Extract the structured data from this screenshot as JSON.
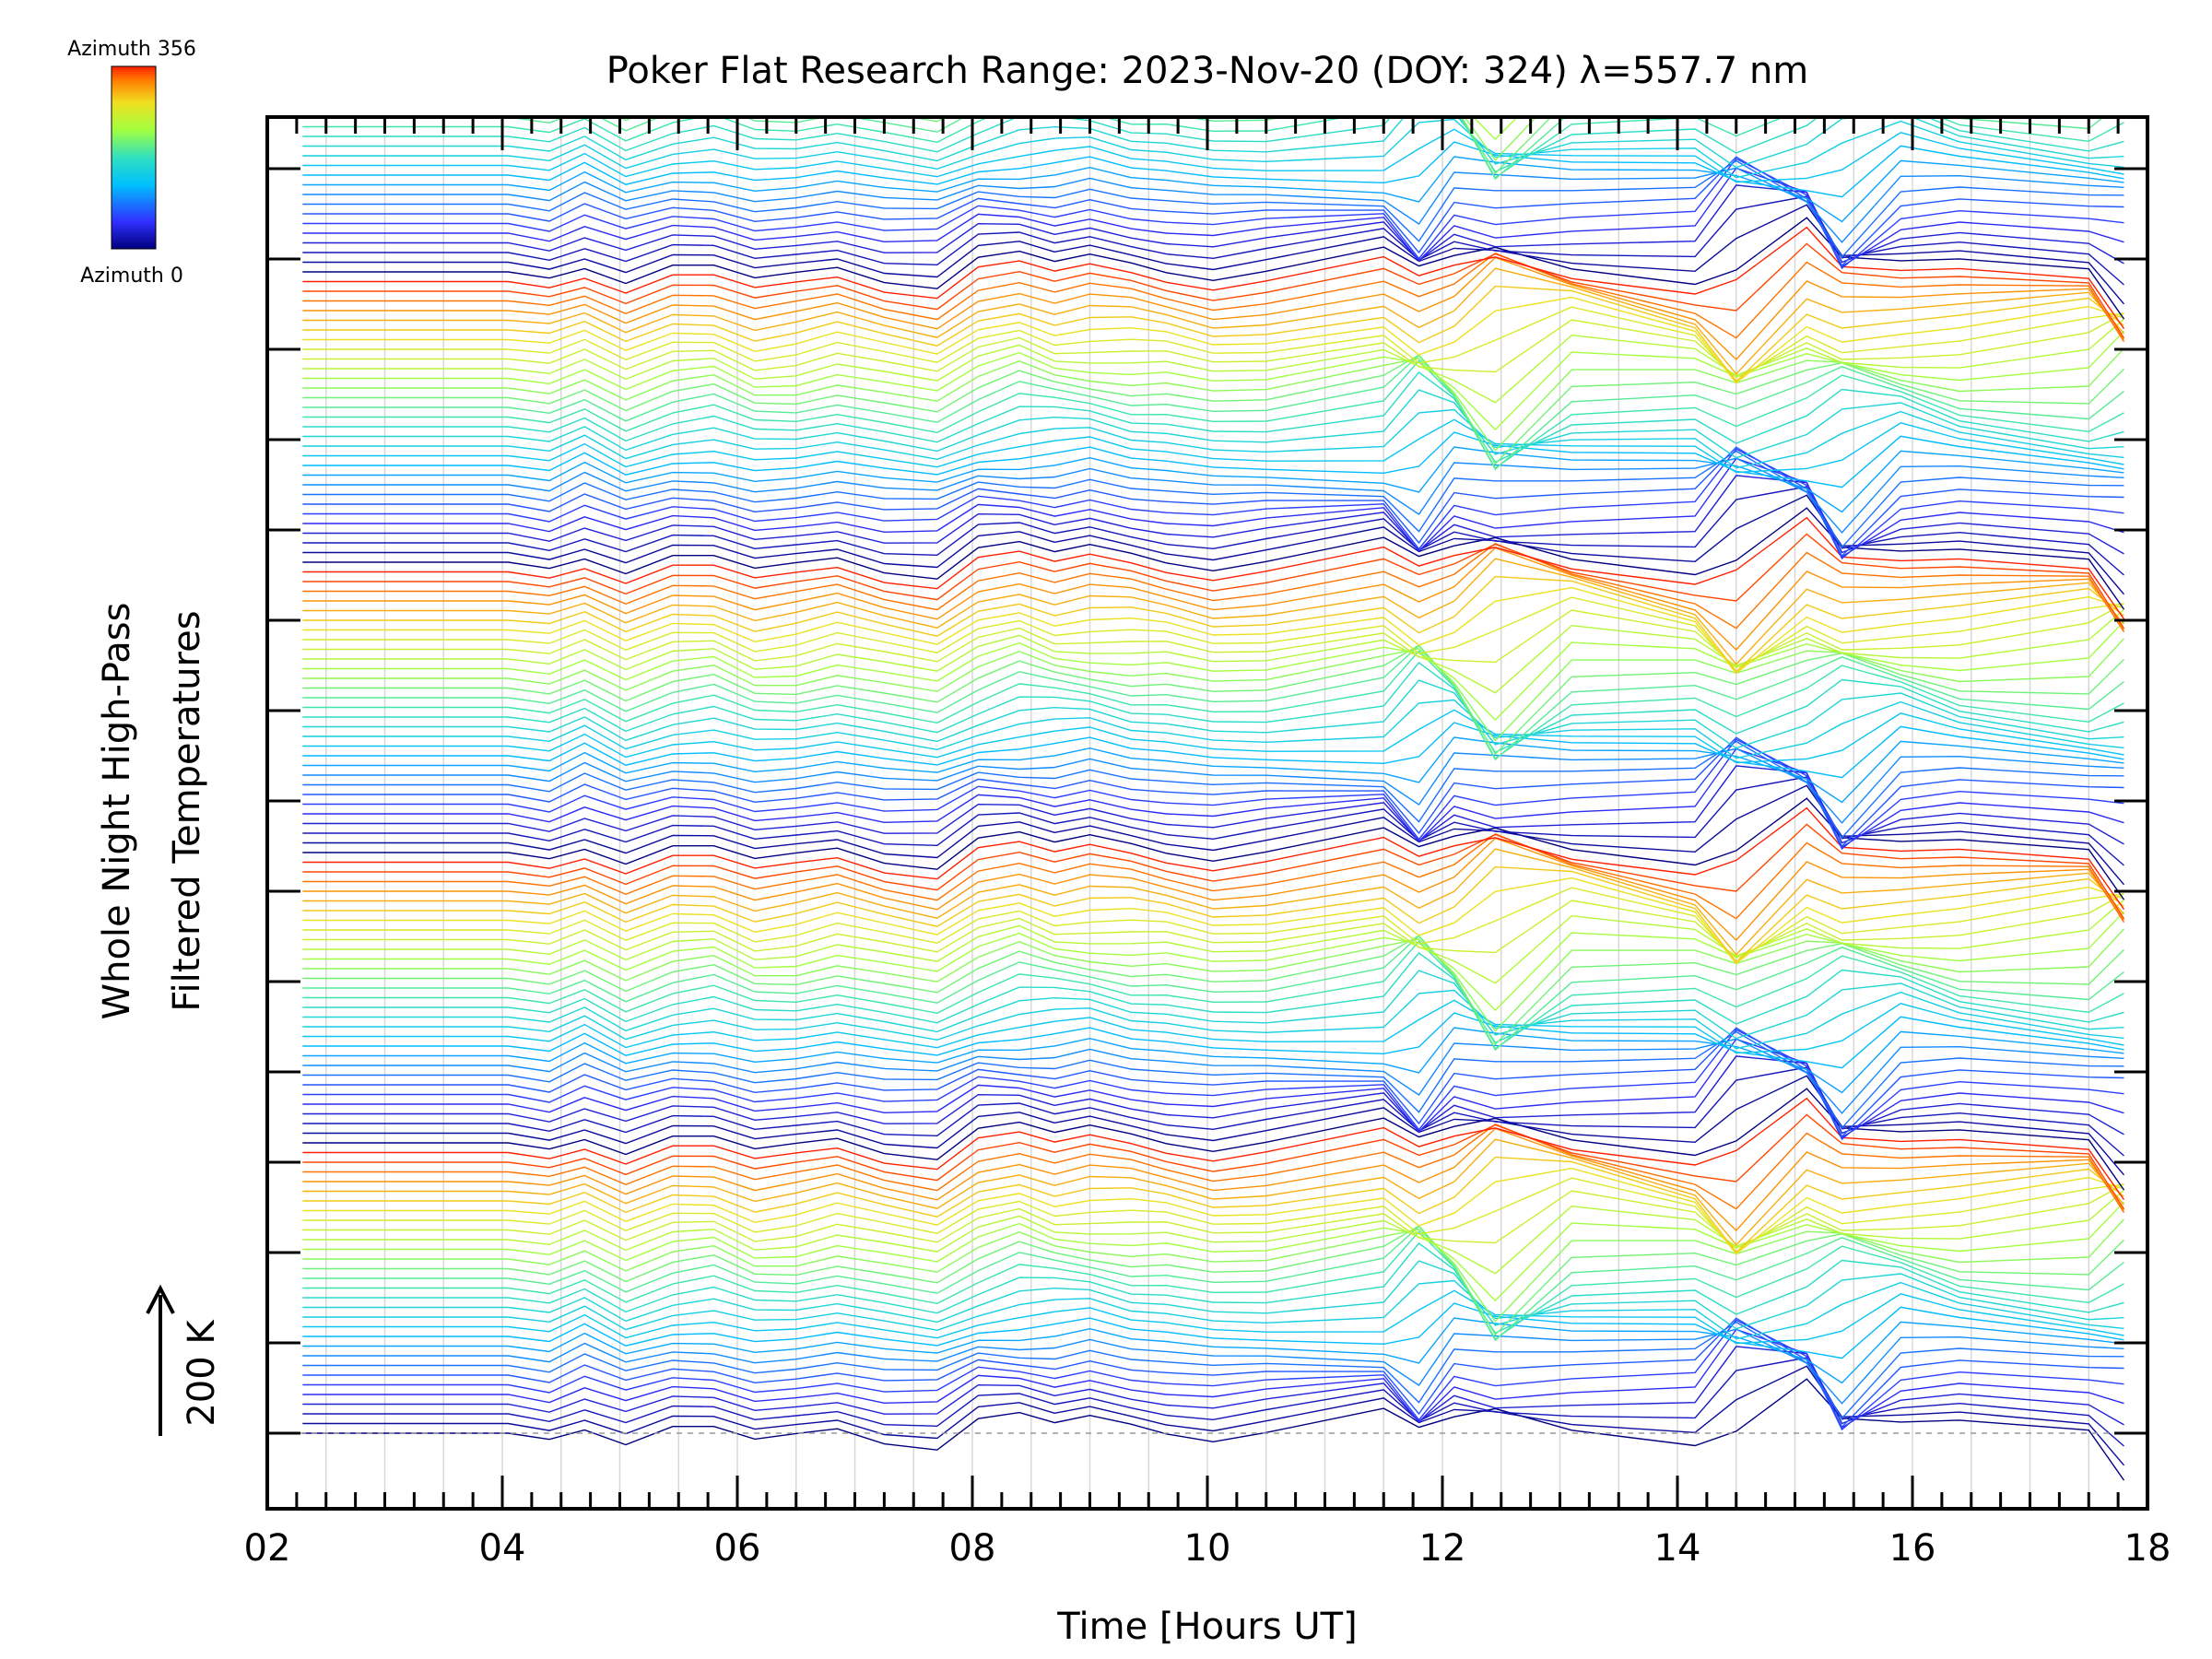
{
  "chart_data": {
    "type": "line",
    "title": "Poker Flat Research Range: 2023-Nov-20 (DOY: 324) λ=557.7 nm",
    "xlabel": "Time [Hours UT]",
    "ylabel_line1": "Whole Night High-Pass",
    "ylabel_line2": "Filtered Temperatures",
    "scale_bar_label": "200 K",
    "xlim": [
      2,
      18
    ],
    "x_tick_labels": [
      "02",
      "04",
      "06",
      "08",
      "10",
      "12",
      "14",
      "16",
      "18"
    ],
    "colorbar": {
      "top_label": "Azimuth 356",
      "bottom_label": "Azimuth 0",
      "colormap": "rainbow"
    },
    "grid": "vertical",
    "series_count": 150,
    "azimuth_cycle": 30,
    "times": [
      2.3,
      4.05,
      4.4,
      4.7,
      5.05,
      5.45,
      5.8,
      6.15,
      6.5,
      6.85,
      7.25,
      7.7,
      8.05,
      8.4,
      8.7,
      9.0,
      9.35,
      9.65,
      10.05,
      10.5,
      11.5,
      11.8,
      12.1,
      12.45,
      13.1,
      14.15,
      14.5,
      15.1,
      15.4,
      15.9,
      16.4,
      17.5,
      17.8
    ],
    "common_disturbance_K": [
      0,
      0,
      -8,
      12,
      -15,
      8,
      10,
      -10,
      -5,
      6,
      -8,
      -18,
      15,
      25,
      15,
      20,
      10,
      5,
      -6,
      -2,
      18,
      5,
      18,
      0,
      22,
      10,
      0,
      30,
      0,
      20,
      15,
      10,
      0
    ],
    "wave_amplitude_K": [
      0,
      0,
      4,
      8,
      8,
      6,
      10,
      8,
      6,
      6,
      8,
      12,
      15,
      18,
      14,
      12,
      10,
      8,
      8,
      10,
      30,
      80,
      40,
      100,
      40,
      30,
      100,
      60,
      80,
      30,
      20,
      40,
      80
    ],
    "offset_per_series_K": 14
  }
}
